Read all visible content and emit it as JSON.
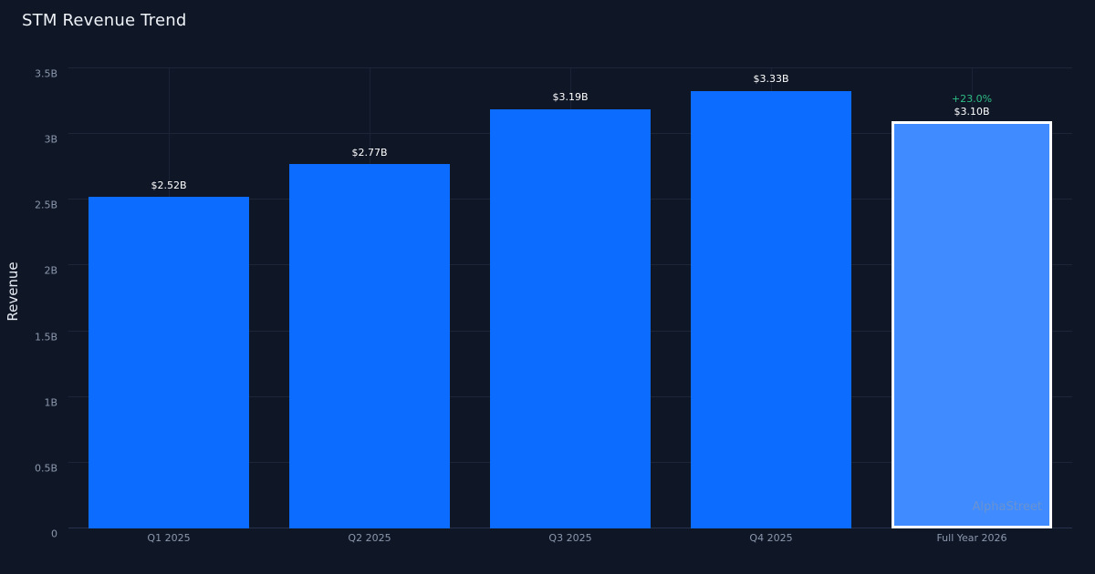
{
  "title": "STM Revenue Trend",
  "watermark": "AlphaStreet",
  "colors": {
    "background": "#0f1626",
    "bar": "#0b6cff",
    "highlight_bar": "#3f8bff",
    "highlight_border": "#ffffff",
    "grid": "#1c2638",
    "title_text": "#eef2f7",
    "muted_text": "#8b98ad",
    "value_label": "#ffffff",
    "positive": "#2ebd85"
  },
  "chart_data": {
    "type": "bar",
    "title": "STM Revenue Trend",
    "ylabel": "Revenue",
    "xlabel": "",
    "categories": [
      "Q1 2025",
      "Q2 2025",
      "Q3 2025",
      "Q4 2025",
      "Full Year 2026"
    ],
    "values": [
      2.52,
      2.77,
      3.19,
      3.33,
      3.1
    ],
    "value_labels": [
      "$2.52B",
      "$2.77B",
      "$3.19B",
      "$3.33B",
      "$3.10B"
    ],
    "highlight_index": 4,
    "highlight_change_label": "+23.0%",
    "ylim": [
      0,
      3.5
    ],
    "yticks": [
      0,
      0.5,
      1,
      1.5,
      2,
      2.5,
      3,
      3.5
    ],
    "ytick_labels": [
      "0",
      "0.5B",
      "1B",
      "1.5B",
      "2B",
      "2.5B",
      "3B",
      "3.5B"
    ],
    "grid": true,
    "legend": false
  }
}
